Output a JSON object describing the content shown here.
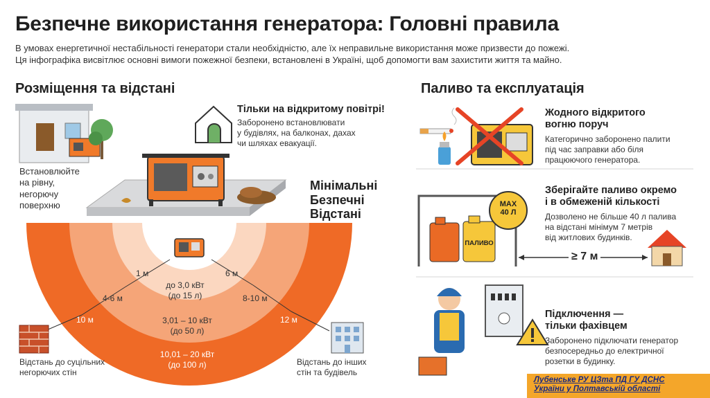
{
  "header": {
    "title": "Безпечне використання генератора: Головні правила",
    "intro_line1": "В умовах енергетичної нестабільності генератори стали необхідністю, але їх неправильне використання може призвести до пожежі.",
    "intro_line2": "Ця інфографіка висвітлює основні вимоги пожежної безпеки, встановлені в Україні, щоб допомогти вам захистити життя та майно."
  },
  "left": {
    "heading": "Розміщення та відстані",
    "outdoor_title": "Тільки на відкритому повітрі!",
    "outdoor_text": [
      "Заборонено встановлювати",
      "у будівлях, на балконах, дахах",
      "чи шляхах евакуації."
    ],
    "surface_text": [
      "Встановлюйте",
      "на рівну,",
      "негорючу",
      "поверхню"
    ],
    "min_title": [
      "Мінімальні",
      "Безпечні",
      "Відстані"
    ],
    "zones": [
      {
        "left": "1 м",
        "right": "6 м",
        "power": "до 3,0 кВт",
        "fuel": "(до 15 л)"
      },
      {
        "left": "4-6 м",
        "right": "8-10 м",
        "power": "3,01 – 10 кВт",
        "fuel": "(до 50 л)"
      },
      {
        "left": "10 м",
        "right": "12 м",
        "power": "10,01 – 20 кВт",
        "fuel": "(до 100 л)"
      }
    ],
    "wall_text": [
      "Відстань до суцільних",
      "негорючих стін"
    ],
    "building_text": [
      "Відстань до інших",
      "стін та будівель"
    ]
  },
  "right": {
    "heading": "Паливо та експлуатація",
    "fire_title": [
      "Жодного відкритого",
      "вогню поруч"
    ],
    "fire_text": [
      "Категорично заборонено палити",
      "під час заправки або біля",
      "працюючого генератора."
    ],
    "fuel_title": [
      "Зберігайте паливо окремо",
      "і в обмеженій кількості"
    ],
    "fuel_text": [
      "Дозволено не більше 40 л палива",
      "на відстані мінімум 7 метрів",
      "від житлових будинків."
    ],
    "max_badge": [
      "MAX",
      "40 Л"
    ],
    "can_label": "ПАЛИВО",
    "distance_label": "≥ 7 м",
    "connect_title": [
      "Підключення —",
      "тільки фахівцем"
    ],
    "connect_text": [
      "Заборонено підключати генератор",
      "безпосередньо до електричної",
      "розетки в будинку."
    ]
  },
  "footer": {
    "line1": "Лубенське РУ ЦЗта ПД ГУ ДСНС",
    "line2": "України у Полтавській області"
  },
  "colors": {
    "orange_dark": "#ef6a26",
    "orange_mid": "#f5a578",
    "orange_light": "#fbd7c0",
    "accent_red": "#e64426",
    "yellow": "#f6c73a"
  }
}
